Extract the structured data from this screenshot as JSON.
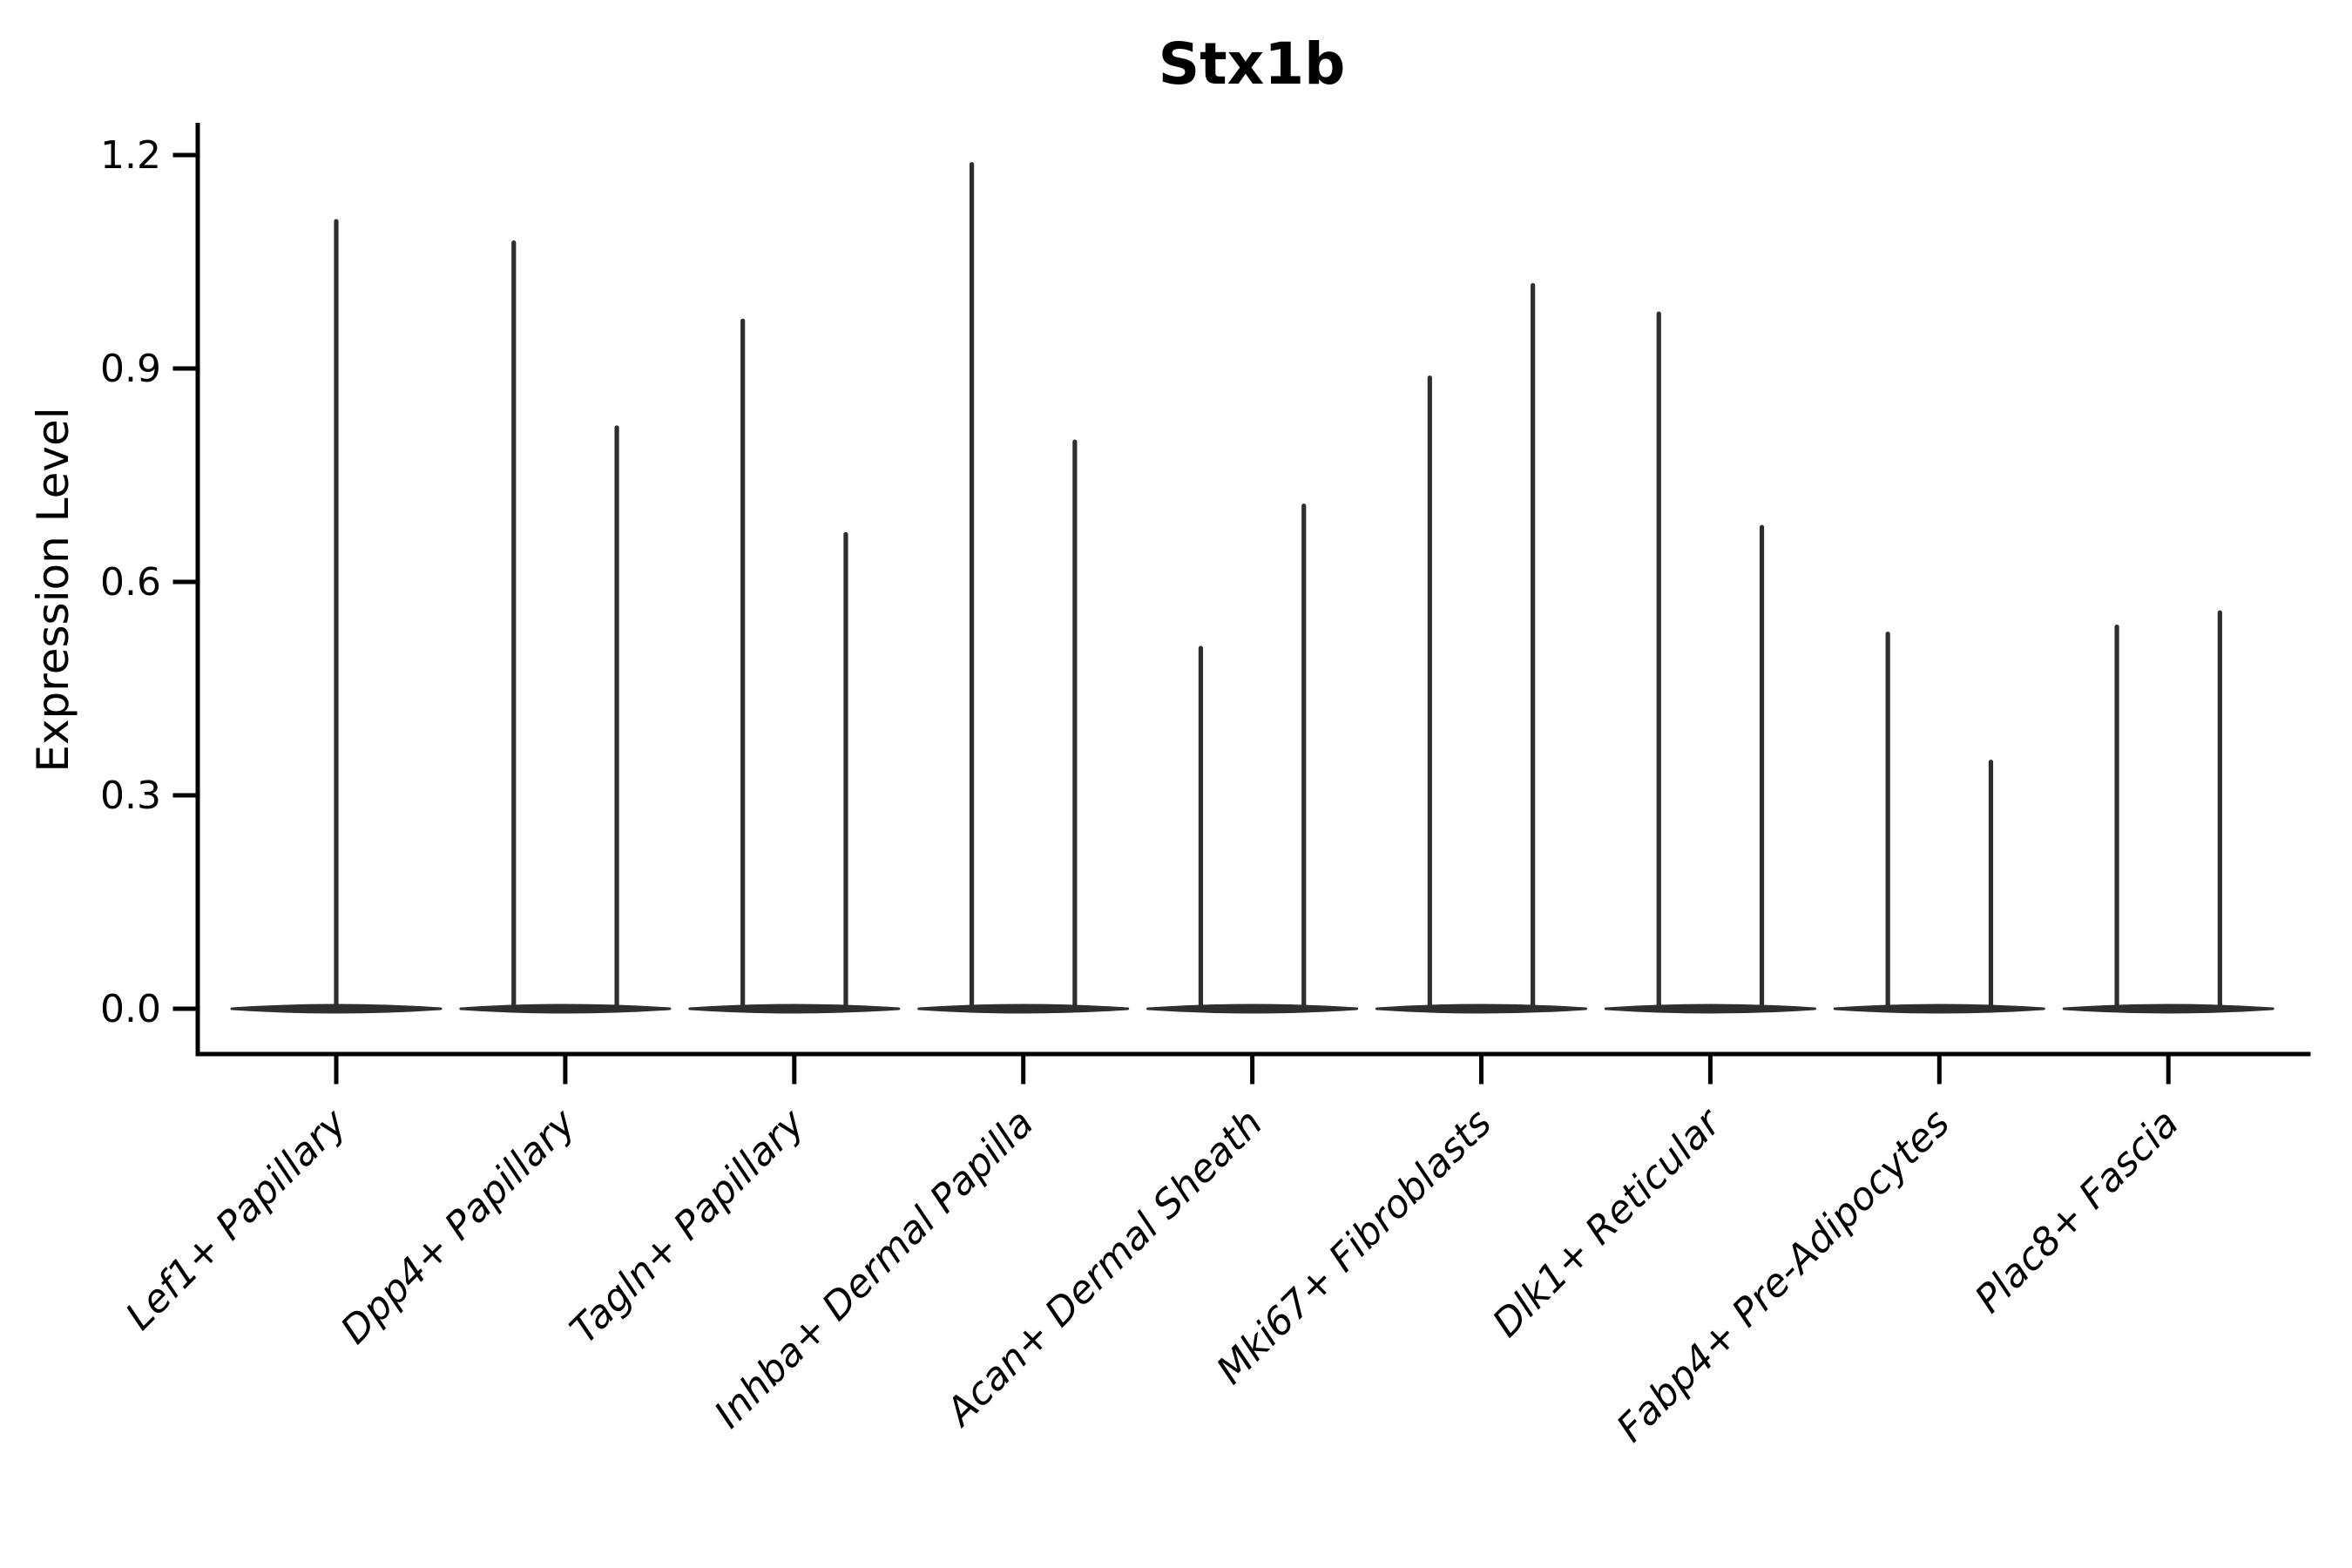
{
  "figure": {
    "title": "Stx1b",
    "ylabel": "Expression Level"
  },
  "chart_data": {
    "type": "violin",
    "title": "Stx1b",
    "xlabel": "",
    "ylabel": "Expression Level",
    "ylim": [
      0,
      1.25
    ],
    "yticks": [
      0.0,
      0.3,
      0.6,
      0.9,
      1.2
    ],
    "ytick_labels": [
      "0.0",
      "0.3",
      "0.6",
      "0.9",
      "1.2"
    ],
    "grid": false,
    "legend": "none",
    "violin_color": "#2e2e2e",
    "axis_color": "#000000",
    "baseline_value": 0.0,
    "violin_half_width": 0.455,
    "note": "Each cell type shows a violin collapsed at expression 0 with one or two thin density spikes reaching the listed peak expression values; spike offsets are in fractions of category spacing",
    "categories": [
      "Lef1+ Papillary",
      "Dpp4+ Papillary",
      "Tagln+ Papillary",
      "Inhba+ Dermal Papilla",
      "Acan+ Dermal Sheath",
      "Mki67+ Fibroblasts",
      "Dlk1+ Reticular",
      "Fabp4+ Pre-Adipocytes",
      "Plac8+ Fascia"
    ],
    "series": [
      {
        "label": "Lef1+ Papillary",
        "spikes": [
          {
            "offset": 0,
            "value": 1.11
          }
        ]
      },
      {
        "label": "Dpp4+ Papillary",
        "spikes": [
          {
            "offset": -0.225,
            "value": 1.08
          },
          {
            "offset": 0.225,
            "value": 0.82
          }
        ]
      },
      {
        "label": "Tagln+ Papillary",
        "spikes": [
          {
            "offset": -0.225,
            "value": 0.97
          },
          {
            "offset": 0.225,
            "value": 0.67
          }
        ]
      },
      {
        "label": "Inhba+ Dermal Papilla",
        "spikes": [
          {
            "offset": -0.225,
            "value": 1.19
          },
          {
            "offset": 0.225,
            "value": 0.8
          }
        ]
      },
      {
        "label": "Acan+ Dermal Sheath",
        "spikes": [
          {
            "offset": -0.225,
            "value": 0.51
          },
          {
            "offset": 0.225,
            "value": 0.71
          }
        ]
      },
      {
        "label": "Mki67+ Fibroblasts",
        "spikes": [
          {
            "offset": -0.225,
            "value": 0.89
          },
          {
            "offset": 0.225,
            "value": 1.02
          }
        ]
      },
      {
        "label": "Dlk1+ Reticular",
        "spikes": [
          {
            "offset": -0.225,
            "value": 0.98
          },
          {
            "offset": 0.225,
            "value": 0.68
          }
        ]
      },
      {
        "label": "Fabp4+ Pre-Adipocytes",
        "spikes": [
          {
            "offset": -0.225,
            "value": 0.53
          },
          {
            "offset": 0.225,
            "value": 0.35
          }
        ]
      },
      {
        "label": "Plac8+ Fascia",
        "spikes": [
          {
            "offset": -0.225,
            "value": 0.54
          },
          {
            "offset": 0.225,
            "value": 0.56
          }
        ]
      }
    ]
  }
}
